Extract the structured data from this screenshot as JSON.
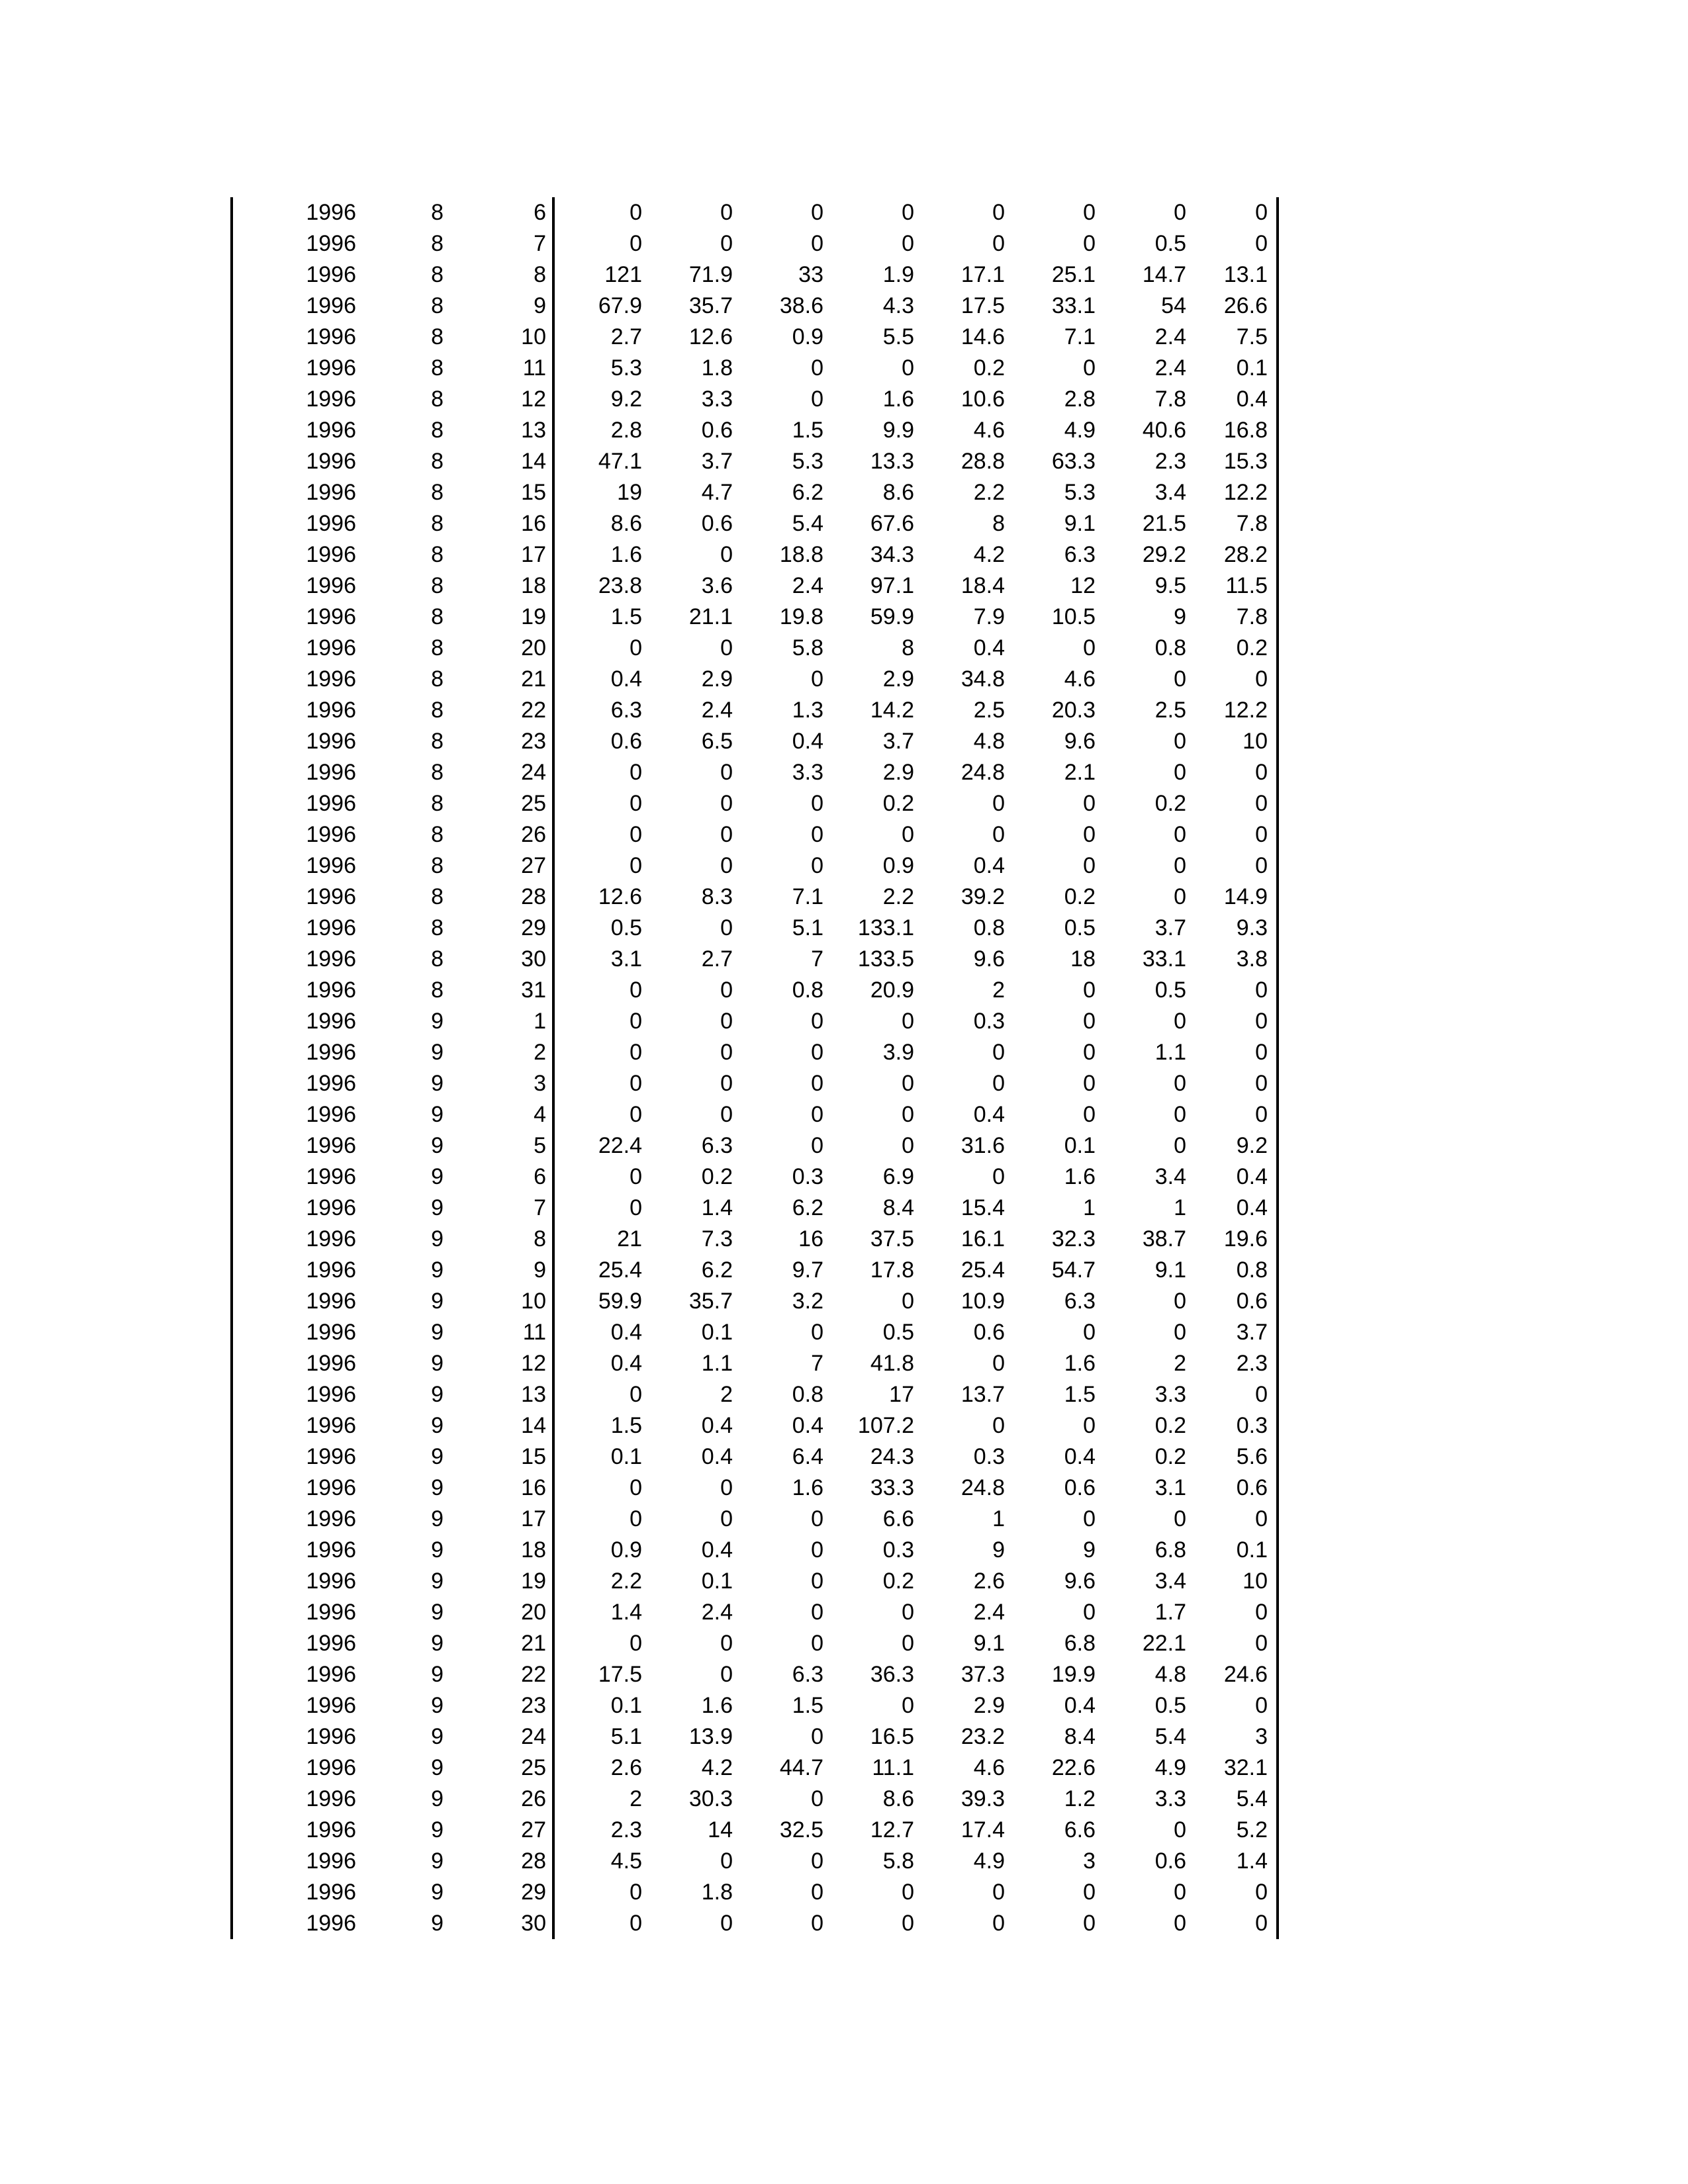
{
  "page": {
    "background_color": "#ffffff",
    "text_color": "#000000"
  },
  "table": {
    "description": "daily-data-table",
    "border_color": "#000000",
    "rows": [
      [
        "1996",
        "8",
        "6",
        "0",
        "0",
        "0",
        "0",
        "0",
        "0",
        "0",
        "0"
      ],
      [
        "1996",
        "8",
        "7",
        "0",
        "0",
        "0",
        "0",
        "0",
        "0",
        "0.5",
        "0"
      ],
      [
        "1996",
        "8",
        "8",
        "121",
        "71.9",
        "33",
        "1.9",
        "17.1",
        "25.1",
        "14.7",
        "13.1"
      ],
      [
        "1996",
        "8",
        "9",
        "67.9",
        "35.7",
        "38.6",
        "4.3",
        "17.5",
        "33.1",
        "54",
        "26.6"
      ],
      [
        "1996",
        "8",
        "10",
        "2.7",
        "12.6",
        "0.9",
        "5.5",
        "14.6",
        "7.1",
        "2.4",
        "7.5"
      ],
      [
        "1996",
        "8",
        "11",
        "5.3",
        "1.8",
        "0",
        "0",
        "0.2",
        "0",
        "2.4",
        "0.1"
      ],
      [
        "1996",
        "8",
        "12",
        "9.2",
        "3.3",
        "0",
        "1.6",
        "10.6",
        "2.8",
        "7.8",
        "0.4"
      ],
      [
        "1996",
        "8",
        "13",
        "2.8",
        "0.6",
        "1.5",
        "9.9",
        "4.6",
        "4.9",
        "40.6",
        "16.8"
      ],
      [
        "1996",
        "8",
        "14",
        "47.1",
        "3.7",
        "5.3",
        "13.3",
        "28.8",
        "63.3",
        "2.3",
        "15.3"
      ],
      [
        "1996",
        "8",
        "15",
        "19",
        "4.7",
        "6.2",
        "8.6",
        "2.2",
        "5.3",
        "3.4",
        "12.2"
      ],
      [
        "1996",
        "8",
        "16",
        "8.6",
        "0.6",
        "5.4",
        "67.6",
        "8",
        "9.1",
        "21.5",
        "7.8"
      ],
      [
        "1996",
        "8",
        "17",
        "1.6",
        "0",
        "18.8",
        "34.3",
        "4.2",
        "6.3",
        "29.2",
        "28.2"
      ],
      [
        "1996",
        "8",
        "18",
        "23.8",
        "3.6",
        "2.4",
        "97.1",
        "18.4",
        "12",
        "9.5",
        "11.5"
      ],
      [
        "1996",
        "8",
        "19",
        "1.5",
        "21.1",
        "19.8",
        "59.9",
        "7.9",
        "10.5",
        "9",
        "7.8"
      ],
      [
        "1996",
        "8",
        "20",
        "0",
        "0",
        "5.8",
        "8",
        "0.4",
        "0",
        "0.8",
        "0.2"
      ],
      [
        "1996",
        "8",
        "21",
        "0.4",
        "2.9",
        "0",
        "2.9",
        "34.8",
        "4.6",
        "0",
        "0"
      ],
      [
        "1996",
        "8",
        "22",
        "6.3",
        "2.4",
        "1.3",
        "14.2",
        "2.5",
        "20.3",
        "2.5",
        "12.2"
      ],
      [
        "1996",
        "8",
        "23",
        "0.6",
        "6.5",
        "0.4",
        "3.7",
        "4.8",
        "9.6",
        "0",
        "10"
      ],
      [
        "1996",
        "8",
        "24",
        "0",
        "0",
        "3.3",
        "2.9",
        "24.8",
        "2.1",
        "0",
        "0"
      ],
      [
        "1996",
        "8",
        "25",
        "0",
        "0",
        "0",
        "0.2",
        "0",
        "0",
        "0.2",
        "0"
      ],
      [
        "1996",
        "8",
        "26",
        "0",
        "0",
        "0",
        "0",
        "0",
        "0",
        "0",
        "0"
      ],
      [
        "1996",
        "8",
        "27",
        "0",
        "0",
        "0",
        "0.9",
        "0.4",
        "0",
        "0",
        "0"
      ],
      [
        "1996",
        "8",
        "28",
        "12.6",
        "8.3",
        "7.1",
        "2.2",
        "39.2",
        "0.2",
        "0",
        "14.9"
      ],
      [
        "1996",
        "8",
        "29",
        "0.5",
        "0",
        "5.1",
        "133.1",
        "0.8",
        "0.5",
        "3.7",
        "9.3"
      ],
      [
        "1996",
        "8",
        "30",
        "3.1",
        "2.7",
        "7",
        "133.5",
        "9.6",
        "18",
        "33.1",
        "3.8"
      ],
      [
        "1996",
        "8",
        "31",
        "0",
        "0",
        "0.8",
        "20.9",
        "2",
        "0",
        "0.5",
        "0"
      ],
      [
        "1996",
        "9",
        "1",
        "0",
        "0",
        "0",
        "0",
        "0.3",
        "0",
        "0",
        "0"
      ],
      [
        "1996",
        "9",
        "2",
        "0",
        "0",
        "0",
        "3.9",
        "0",
        "0",
        "1.1",
        "0"
      ],
      [
        "1996",
        "9",
        "3",
        "0",
        "0",
        "0",
        "0",
        "0",
        "0",
        "0",
        "0"
      ],
      [
        "1996",
        "9",
        "4",
        "0",
        "0",
        "0",
        "0",
        "0.4",
        "0",
        "0",
        "0"
      ],
      [
        "1996",
        "9",
        "5",
        "22.4",
        "6.3",
        "0",
        "0",
        "31.6",
        "0.1",
        "0",
        "9.2"
      ],
      [
        "1996",
        "9",
        "6",
        "0",
        "0.2",
        "0.3",
        "6.9",
        "0",
        "1.6",
        "3.4",
        "0.4"
      ],
      [
        "1996",
        "9",
        "7",
        "0",
        "1.4",
        "6.2",
        "8.4",
        "15.4",
        "1",
        "1",
        "0.4"
      ],
      [
        "1996",
        "9",
        "8",
        "21",
        "7.3",
        "16",
        "37.5",
        "16.1",
        "32.3",
        "38.7",
        "19.6"
      ],
      [
        "1996",
        "9",
        "9",
        "25.4",
        "6.2",
        "9.7",
        "17.8",
        "25.4",
        "54.7",
        "9.1",
        "0.8"
      ],
      [
        "1996",
        "9",
        "10",
        "59.9",
        "35.7",
        "3.2",
        "0",
        "10.9",
        "6.3",
        "0",
        "0.6"
      ],
      [
        "1996",
        "9",
        "11",
        "0.4",
        "0.1",
        "0",
        "0.5",
        "0.6",
        "0",
        "0",
        "3.7"
      ],
      [
        "1996",
        "9",
        "12",
        "0.4",
        "1.1",
        "7",
        "41.8",
        "0",
        "1.6",
        "2",
        "2.3"
      ],
      [
        "1996",
        "9",
        "13",
        "0",
        "2",
        "0.8",
        "17",
        "13.7",
        "1.5",
        "3.3",
        "0"
      ],
      [
        "1996",
        "9",
        "14",
        "1.5",
        "0.4",
        "0.4",
        "107.2",
        "0",
        "0",
        "0.2",
        "0.3"
      ],
      [
        "1996",
        "9",
        "15",
        "0.1",
        "0.4",
        "6.4",
        "24.3",
        "0.3",
        "0.4",
        "0.2",
        "5.6"
      ],
      [
        "1996",
        "9",
        "16",
        "0",
        "0",
        "1.6",
        "33.3",
        "24.8",
        "0.6",
        "3.1",
        "0.6"
      ],
      [
        "1996",
        "9",
        "17",
        "0",
        "0",
        "0",
        "6.6",
        "1",
        "0",
        "0",
        "0"
      ],
      [
        "1996",
        "9",
        "18",
        "0.9",
        "0.4",
        "0",
        "0.3",
        "9",
        "9",
        "6.8",
        "0.1"
      ],
      [
        "1996",
        "9",
        "19",
        "2.2",
        "0.1",
        "0",
        "0.2",
        "2.6",
        "9.6",
        "3.4",
        "10"
      ],
      [
        "1996",
        "9",
        "20",
        "1.4",
        "2.4",
        "0",
        "0",
        "2.4",
        "0",
        "1.7",
        "0"
      ],
      [
        "1996",
        "9",
        "21",
        "0",
        "0",
        "0",
        "0",
        "9.1",
        "6.8",
        "22.1",
        "0"
      ],
      [
        "1996",
        "9",
        "22",
        "17.5",
        "0",
        "6.3",
        "36.3",
        "37.3",
        "19.9",
        "4.8",
        "24.6"
      ],
      [
        "1996",
        "9",
        "23",
        "0.1",
        "1.6",
        "1.5",
        "0",
        "2.9",
        "0.4",
        "0.5",
        "0"
      ],
      [
        "1996",
        "9",
        "24",
        "5.1",
        "13.9",
        "0",
        "16.5",
        "23.2",
        "8.4",
        "5.4",
        "3"
      ],
      [
        "1996",
        "9",
        "25",
        "2.6",
        "4.2",
        "44.7",
        "11.1",
        "4.6",
        "22.6",
        "4.9",
        "32.1"
      ],
      [
        "1996",
        "9",
        "26",
        "2",
        "30.3",
        "0",
        "8.6",
        "39.3",
        "1.2",
        "3.3",
        "5.4"
      ],
      [
        "1996",
        "9",
        "27",
        "2.3",
        "14",
        "32.5",
        "12.7",
        "17.4",
        "6.6",
        "0",
        "5.2"
      ],
      [
        "1996",
        "9",
        "28",
        "4.5",
        "0",
        "0",
        "5.8",
        "4.9",
        "3",
        "0.6",
        "1.4"
      ],
      [
        "1996",
        "9",
        "29",
        "0",
        "1.8",
        "0",
        "0",
        "0",
        "0",
        "0",
        "0"
      ],
      [
        "1996",
        "9",
        "30",
        "0",
        "0",
        "0",
        "0",
        "0",
        "0",
        "0",
        "0"
      ]
    ]
  }
}
